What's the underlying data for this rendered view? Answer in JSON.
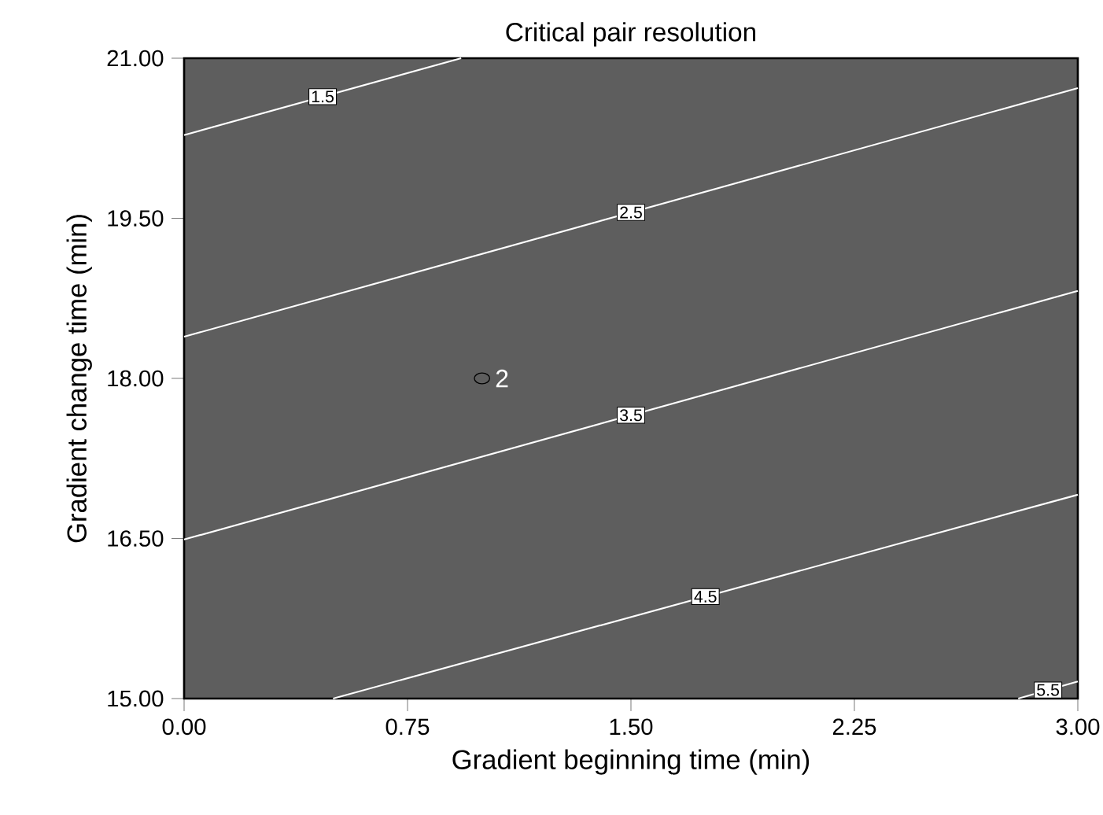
{
  "chart_data": {
    "type": "line",
    "title": "Critical pair resolution",
    "xlabel": "Gradient beginning time (min)",
    "ylabel": "Gradient change time (min)",
    "xlim": [
      0,
      3
    ],
    "ylim": [
      15,
      21
    ],
    "xticks": [
      {
        "value": 0,
        "label": "0.00"
      },
      {
        "value": 0.75,
        "label": "0.75"
      },
      {
        "value": 1.5,
        "label": "1.50"
      },
      {
        "value": 2.25,
        "label": "2.25"
      },
      {
        "value": 3,
        "label": "3.00"
      }
    ],
    "yticks": [
      {
        "value": 15,
        "label": "15.00"
      },
      {
        "value": 16.5,
        "label": "16.50"
      },
      {
        "value": 18,
        "label": "18.00"
      },
      {
        "value": 19.5,
        "label": "19.50"
      },
      {
        "value": 21,
        "label": "21.00"
      }
    ],
    "grid": false,
    "legend": false,
    "annotations": [
      {
        "text": "2",
        "x": 1,
        "y": 18
      }
    ],
    "series": [
      {
        "name": "1.5",
        "color": "#ffffff",
        "x": [
          0,
          0.93
        ],
        "values": [
          20.28,
          21
        ]
      },
      {
        "name": "2.5",
        "color": "#ffffff",
        "x": [
          0,
          3
        ],
        "values": [
          18.39,
          20.72
        ]
      },
      {
        "name": "3.5",
        "color": "#ffffff",
        "x": [
          0,
          3
        ],
        "values": [
          16.49,
          18.82
        ]
      },
      {
        "name": "4.5",
        "color": "#ffffff",
        "x": [
          0.5,
          3
        ],
        "values": [
          15,
          16.91
        ]
      },
      {
        "name": "5.5",
        "color": "#ffffff",
        "x": [
          2.8,
          3
        ],
        "values": [
          15,
          15.16
        ]
      },
      {
        "type": "scatter",
        "marker": "circle",
        "color": "#000000",
        "x": [
          1
        ],
        "values": [
          18
        ]
      }
    ]
  }
}
